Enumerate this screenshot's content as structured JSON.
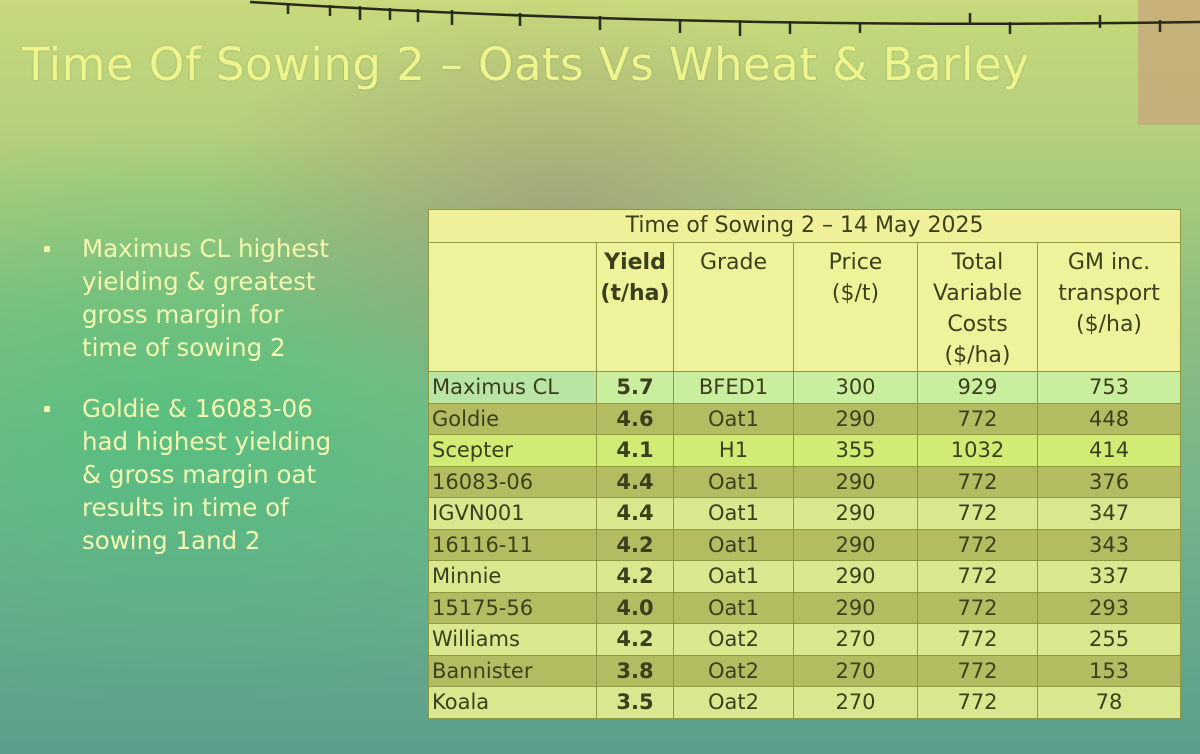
{
  "slide": {
    "title": "Time Of Sowing 2 – Oats Vs Wheat & Barley",
    "bullets": [
      {
        "text": "Maximus CL highest\nyielding & greatest\ngross margin for\ntime of sowing 2"
      },
      {
        "text": "Goldie & 16083-06\nhad highest yielding\n& gross margin oat\nresults in time of\nsowing 1and 2"
      }
    ]
  },
  "table": {
    "caption": "Time of Sowing 2 – 14 May 2025",
    "headers": {
      "variety": "",
      "yield": [
        "Yield",
        "(t/ha)"
      ],
      "grade": [
        "Grade"
      ],
      "price": [
        "Price",
        "($/t)"
      ],
      "costs": [
        "Total",
        "Variable",
        "Costs",
        "($/ha)"
      ],
      "gm": [
        "GM inc.",
        "transport",
        "($/ha)"
      ]
    },
    "rows": [
      {
        "variety": "Maximus CL",
        "yield": "5.7",
        "grade": "BFED1",
        "price": "300",
        "costs": "929",
        "gm": "753"
      },
      {
        "variety": "Goldie",
        "yield": "4.6",
        "grade": "Oat1",
        "price": "290",
        "costs": "772",
        "gm": "448"
      },
      {
        "variety": "Scepter",
        "yield": "4.1",
        "grade": "H1",
        "price": "355",
        "costs": "1032",
        "gm": "414"
      },
      {
        "variety": "16083-06",
        "yield": "4.4",
        "grade": "Oat1",
        "price": "290",
        "costs": "772",
        "gm": "376"
      },
      {
        "variety": "IGVN001",
        "yield": "4.4",
        "grade": "Oat1",
        "price": "290",
        "costs": "772",
        "gm": "347"
      },
      {
        "variety": "16116-11",
        "yield": "4.2",
        "grade": "Oat1",
        "price": "290",
        "costs": "772",
        "gm": "343"
      },
      {
        "variety": "Minnie",
        "yield": "4.2",
        "grade": "Oat1",
        "price": "290",
        "costs": "772",
        "gm": "337"
      },
      {
        "variety": "15175-56",
        "yield": "4.0",
        "grade": "Oat1",
        "price": "290",
        "costs": "772",
        "gm": "293"
      },
      {
        "variety": "Williams",
        "yield": "4.2",
        "grade": "Oat2",
        "price": "270",
        "costs": "772",
        "gm": "255"
      },
      {
        "variety": "Bannister",
        "yield": "3.8",
        "grade": "Oat2",
        "price": "270",
        "costs": "772",
        "gm": "153"
      },
      {
        "variety": "Koala",
        "yield": "3.5",
        "grade": "Oat2",
        "price": "270",
        "costs": "772",
        "gm": "78"
      }
    ]
  }
}
